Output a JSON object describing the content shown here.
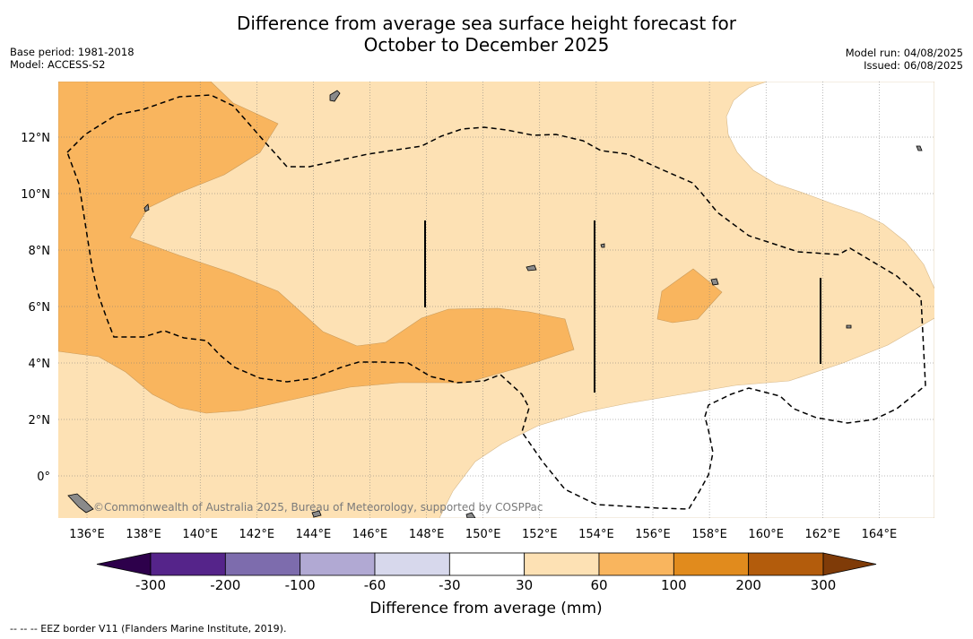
{
  "title_line1": "Difference from average sea surface height forecast for",
  "title_line2": "October to December 2025",
  "base_period": "Base period: 1981-2018",
  "model": "Model: ACCESS-S2",
  "model_run": "Model run: 04/08/2025",
  "issued": "Issued: 06/08/2025",
  "credit": "©Commonwealth of Australia 2025, Bureau of Meteorology, supported by COSPPac",
  "lon_labels": [
    "136°E",
    "138°E",
    "140°E",
    "142°E",
    "144°E",
    "146°E",
    "148°E",
    "150°E",
    "152°E",
    "154°E",
    "156°E",
    "158°E",
    "160°E",
    "162°E",
    "164°E"
  ],
  "lat_labels": [
    "12°N",
    "10°N",
    "8°N",
    "6°N",
    "4°N",
    "2°N",
    "0°"
  ],
  "colorbar": {
    "label": "Difference from average (mm)",
    "ticks": [
      "-300",
      "-200",
      "-100",
      "-60",
      "-30",
      "30",
      "60",
      "100",
      "200",
      "300"
    ],
    "colors": [
      "#55248a",
      "#7d6cad",
      "#b1a9d3",
      "#d7d8ec",
      "#ffffff",
      "#fde1b4",
      "#f9b55e",
      "#e18b1d",
      "#b35c0c"
    ],
    "under_color": "#2d004b",
    "over_color": "#7f3b08"
  },
  "footnote": "--  --  -- EEZ border V11 (Flanders Marine Institute, 2019)."
}
